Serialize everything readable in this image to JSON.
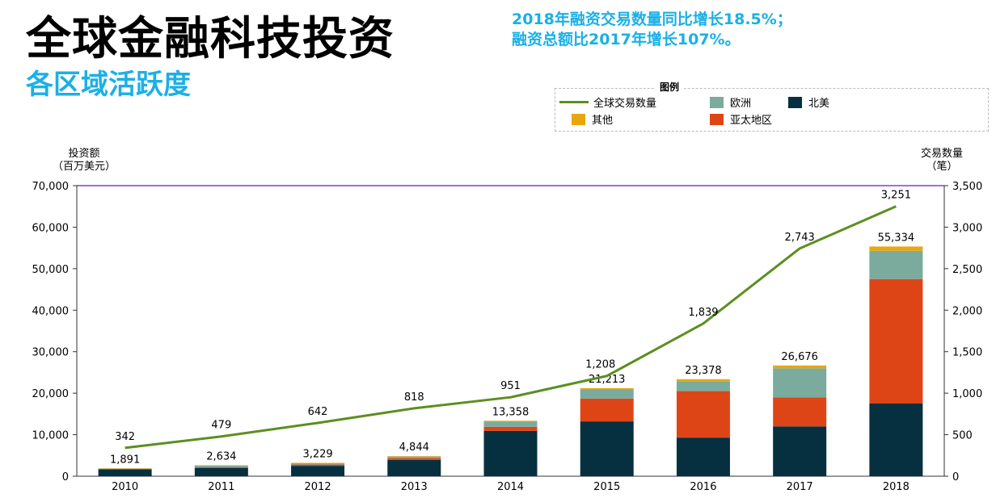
{
  "header": {
    "title": "全球金融科技投资",
    "subtitle": "各区域活跃度",
    "headline_line1": "2018年融资交易数量同比增长18.5%；",
    "headline_line2": "融资总额比2017年增长107%。"
  },
  "legend": {
    "title": "图例",
    "items": {
      "deals": "全球交易数量",
      "europe": "欧洲",
      "north_america": "北美",
      "other": "其他",
      "apac": "亚太地区"
    }
  },
  "axes": {
    "left_label_1": "投资额",
    "left_label_2": "（百万美元）",
    "right_label_1": "交易数量",
    "right_label_2": "（笔）"
  },
  "colors": {
    "north_america": "#06303f",
    "apac": "#de4516",
    "europe": "#7aab9d",
    "other": "#e8a70f",
    "deals_line": "#5b8f1f",
    "top_line": "#7e3fd6"
  },
  "chart_data": {
    "type": "bar",
    "categories": [
      "2010",
      "2011",
      "2012",
      "2013",
      "2014",
      "2015",
      "2016",
      "2017",
      "2018"
    ],
    "totals": [
      1891,
      2634,
      3229,
      4844,
      13358,
      21213,
      23378,
      26676,
      55334
    ],
    "total_labels": [
      "1,891",
      "2,634",
      "3,229",
      "4,844",
      "13,358",
      "21,213",
      "23,378",
      "26,676",
      "55,334"
    ],
    "series": [
      {
        "name": "北美",
        "key": "north_america",
        "values": [
          1650,
          2000,
          2500,
          3900,
          10900,
          13200,
          9300,
          12000,
          17500
        ]
      },
      {
        "name": "亚太地区",
        "key": "apac",
        "values": [
          80,
          200,
          300,
          450,
          1000,
          5500,
          11200,
          7000,
          30000
        ]
      },
      {
        "name": "欧洲",
        "key": "europe",
        "values": [
          130,
          330,
          330,
          380,
          1300,
          2200,
          2400,
          7000,
          6800
        ]
      },
      {
        "name": "其他",
        "key": "other",
        "values": [
          31,
          104,
          99,
          114,
          158,
          313,
          478,
          676,
          1034
        ]
      }
    ],
    "line": {
      "name": "全球交易数量",
      "values": [
        342,
        479,
        642,
        818,
        951,
        1208,
        1839,
        2743,
        3251
      ],
      "labels": [
        "342",
        "479",
        "642",
        "818",
        "951",
        "1,208",
        "1,839",
        "2,743",
        "3,251"
      ]
    },
    "y_left": {
      "min": 0,
      "max": 70000,
      "ticks": [
        "0",
        "10,000",
        "20,000",
        "30,000",
        "40,000",
        "50,000",
        "60,000",
        "70,000"
      ]
    },
    "y_right": {
      "min": 0,
      "max": 3500,
      "ticks": [
        "0",
        "500",
        "1,000",
        "1,500",
        "2,000",
        "2,500",
        "3,000",
        "3,500"
      ]
    },
    "legend_position": "top-right"
  }
}
